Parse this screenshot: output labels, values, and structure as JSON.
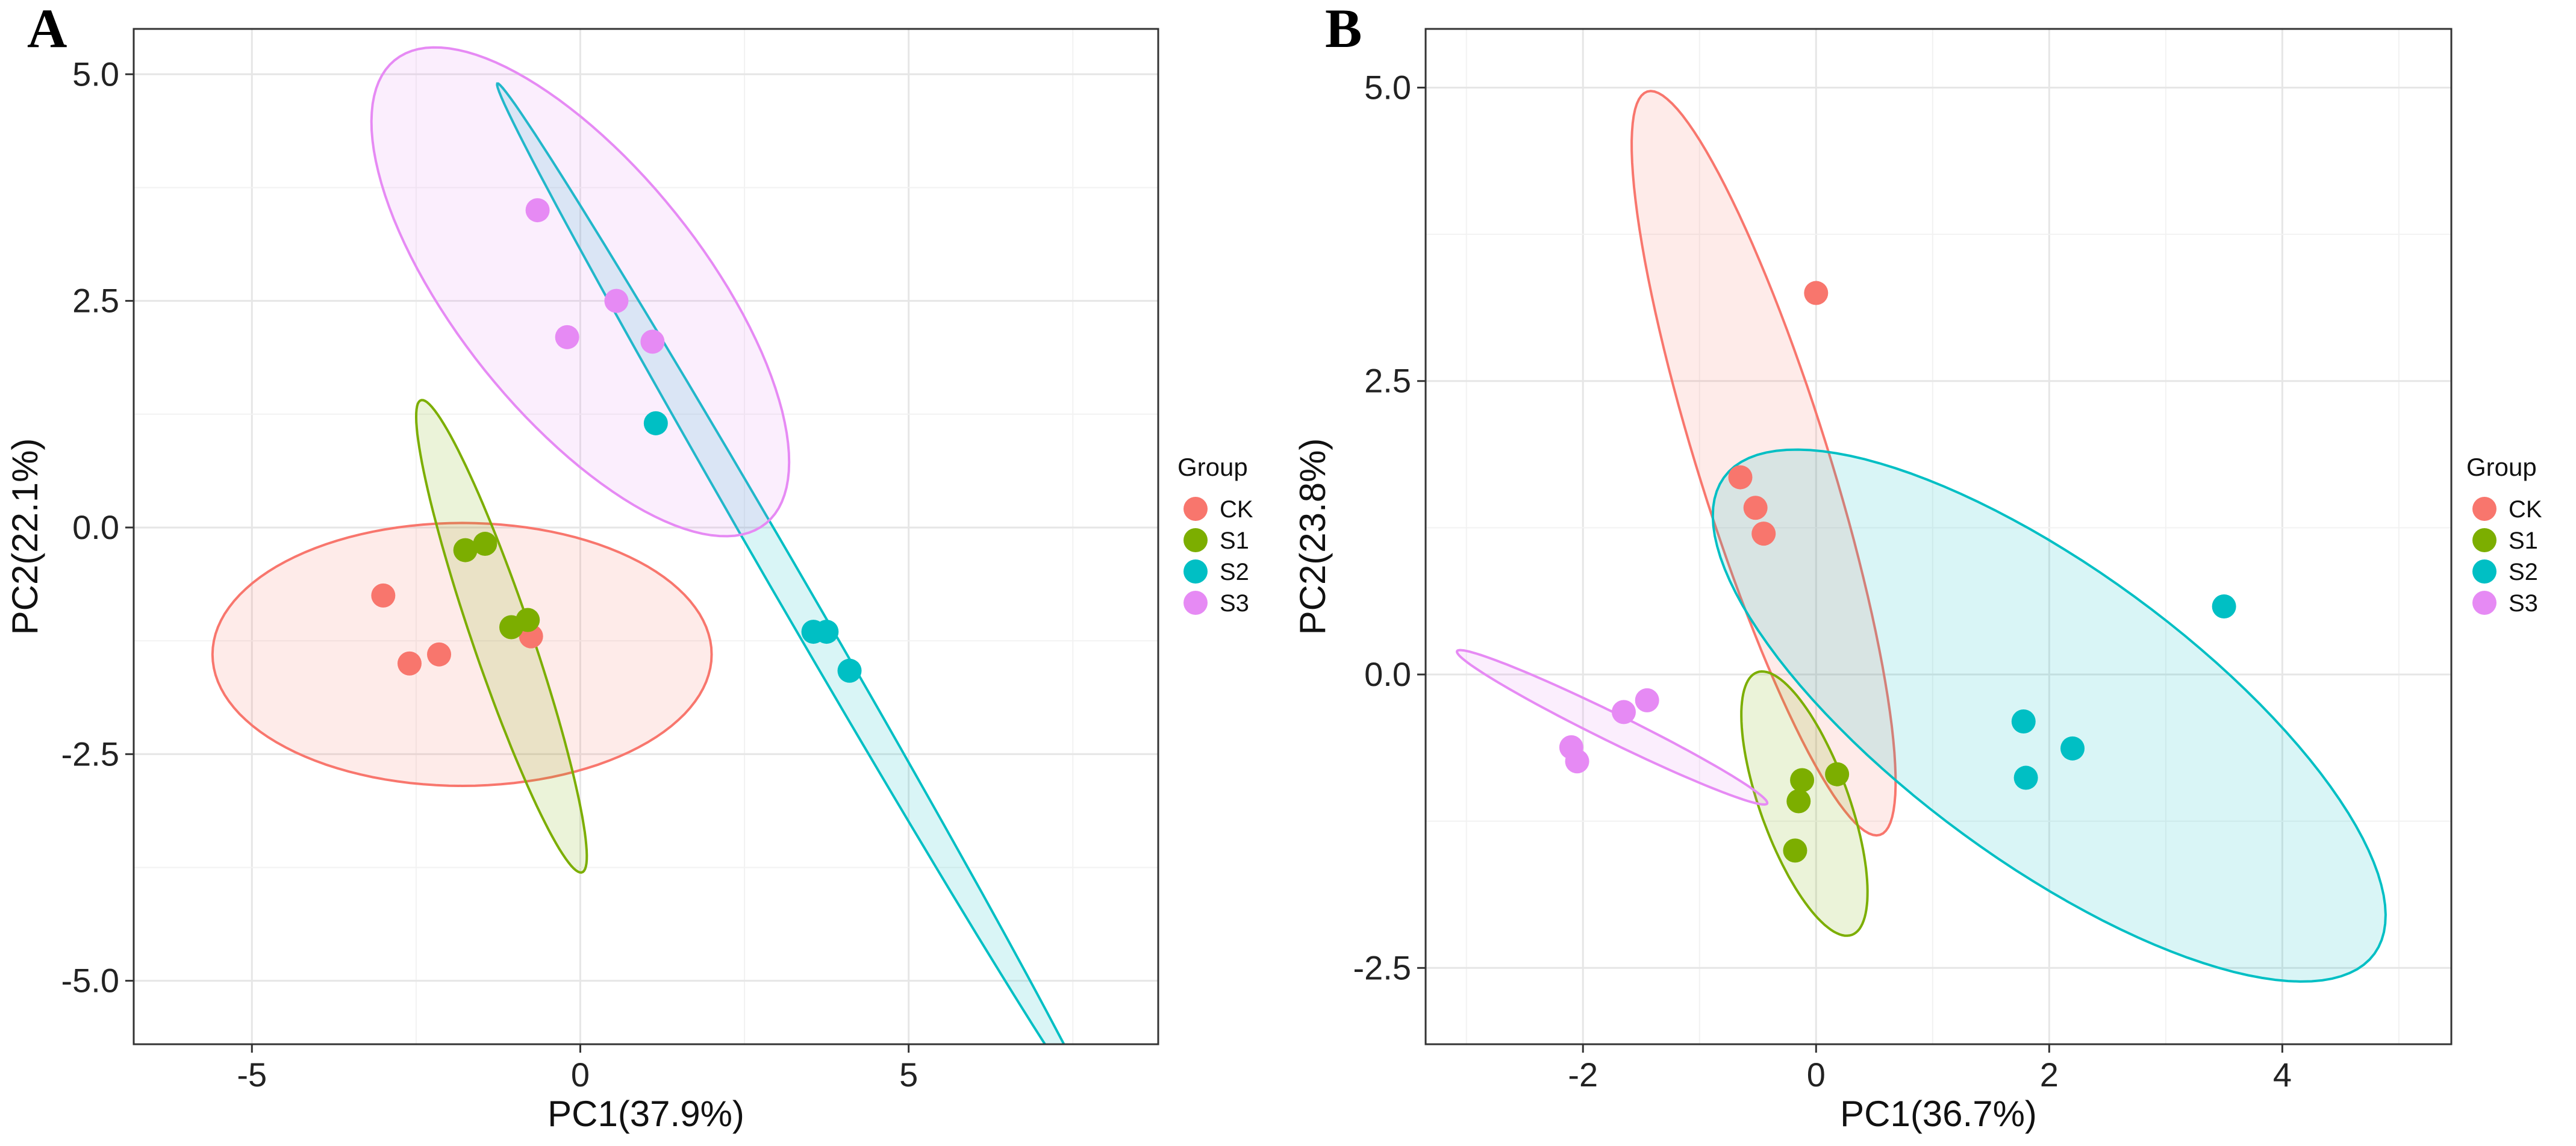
{
  "chart_data": [
    {
      "type": "scatter",
      "panel_label": "A",
      "title": "",
      "xlabel": "PC1(37.9%)",
      "ylabel": "PC2(22.1%)",
      "xlim": [
        -6.8,
        8.8
      ],
      "ylim": [
        -5.7,
        5.5
      ],
      "xticks": [
        -5,
        0,
        5
      ],
      "xtick_labels": [
        "-5",
        "0",
        "5"
      ],
      "yticks": [
        5.0,
        2.5,
        0.0,
        -2.5,
        -5.0
      ],
      "ytick_labels": [
        "5.0",
        "2.5",
        "0.0",
        "-2.5",
        "-5.0"
      ],
      "grid": true,
      "legend": {
        "title": "Group",
        "position": "right",
        "entries": [
          "CK",
          "S1",
          "S2",
          "S3"
        ]
      },
      "series": [
        {
          "name": "CK",
          "color": "#F8766D",
          "points": [
            [
              -3.0,
              -0.75
            ],
            [
              -2.6,
              -1.5
            ],
            [
              -2.15,
              -1.4
            ],
            [
              -0.75,
              -1.2
            ]
          ],
          "ellipse": {
            "center": [
              -1.8,
              -1.4
            ],
            "semi_axes": [
              3.8,
              1.45
            ],
            "angle_deg": 0
          }
        },
        {
          "name": "S1",
          "color": "#7CAE00",
          "points": [
            [
              -1.75,
              -0.25
            ],
            [
              -1.45,
              -0.18
            ],
            [
              -1.05,
              -1.1
            ],
            [
              -0.8,
              -1.02
            ]
          ],
          "ellipse": {
            "center": [
              -1.2,
              -1.2
            ],
            "semi_axes": [
              2.88,
              0.43
            ],
            "angle_deg": -64.5
          }
        },
        {
          "name": "S2",
          "color": "#00BFC4",
          "points": [
            [
              1.15,
              1.15
            ],
            [
              3.55,
              -1.15
            ],
            [
              3.75,
              -1.15
            ],
            [
              4.1,
              -1.58
            ]
          ],
          "ellipse": {
            "center": [
              3.3,
              -0.8
            ],
            "semi_axes": [
              7.3,
              0.22
            ],
            "angle_deg": -51.3
          }
        },
        {
          "name": "S3",
          "color": "#E68AF4",
          "points": [
            [
              -0.65,
              3.5
            ],
            [
              -0.2,
              2.1
            ],
            [
              0.55,
              2.5
            ],
            [
              1.1,
              2.05
            ]
          ],
          "ellipse": {
            "center": [
              0.0,
              2.6
            ],
            "semi_axes": [
              3.85,
              1.6
            ],
            "angle_deg": -38.3
          }
        }
      ]
    },
    {
      "type": "scatter",
      "panel_label": "B",
      "title": "",
      "xlabel": "PC1(36.7%)",
      "ylabel": "PC2(23.8%)",
      "xlim": [
        -3.35,
        5.45
      ],
      "ylim": [
        -3.15,
        5.5
      ],
      "xticks": [
        -2,
        0,
        2,
        4
      ],
      "xtick_labels": [
        "-2",
        "0",
        "2",
        "4"
      ],
      "yticks": [
        5.0,
        2.5,
        0.0,
        -2.5
      ],
      "ytick_labels": [
        "5.0",
        "2.5",
        "0.0",
        "-2.5"
      ],
      "grid": true,
      "legend": {
        "title": "Group",
        "position": "right",
        "entries": [
          "CK",
          "S1",
          "S2",
          "S3"
        ]
      },
      "series": [
        {
          "name": "CK",
          "color": "#F8766D",
          "points": [
            [
              0.0,
              3.25
            ],
            [
              -0.65,
              1.68
            ],
            [
              -0.52,
              1.42
            ],
            [
              -0.45,
              1.2
            ]
          ],
          "ellipse": {
            "center": [
              -0.45,
              1.8
            ],
            "semi_axes": [
              3.32,
              0.56
            ],
            "angle_deg": -72.5
          }
        },
        {
          "name": "S1",
          "color": "#7CAE00",
          "points": [
            [
              0.18,
              -0.85
            ],
            [
              -0.12,
              -0.9
            ],
            [
              -0.15,
              -1.08
            ],
            [
              -0.18,
              -1.5
            ]
          ],
          "ellipse": {
            "center": [
              -0.1,
              -1.1
            ],
            "semi_axes": [
              1.19,
              0.38
            ],
            "angle_deg": -70
          }
        },
        {
          "name": "S2",
          "color": "#00BFC4",
          "points": [
            [
              3.5,
              0.58
            ],
            [
              1.78,
              -0.4
            ],
            [
              2.2,
              -0.63
            ],
            [
              1.8,
              -0.88
            ]
          ],
          "ellipse": {
            "center": [
              2.0,
              -0.35
            ],
            "semi_axes": [
              3.45,
              1.25
            ],
            "angle_deg": -36
          }
        },
        {
          "name": "S3",
          "color": "#E68AF4",
          "points": [
            [
              -1.45,
              -0.22
            ],
            [
              -1.65,
              -0.32
            ],
            [
              -2.1,
              -0.62
            ],
            [
              -2.05,
              -0.74
            ]
          ],
          "ellipse": {
            "center": [
              -1.75,
              -0.45
            ],
            "semi_axes": [
              1.48,
              0.12
            ],
            "angle_deg": -26
          }
        }
      ]
    }
  ]
}
